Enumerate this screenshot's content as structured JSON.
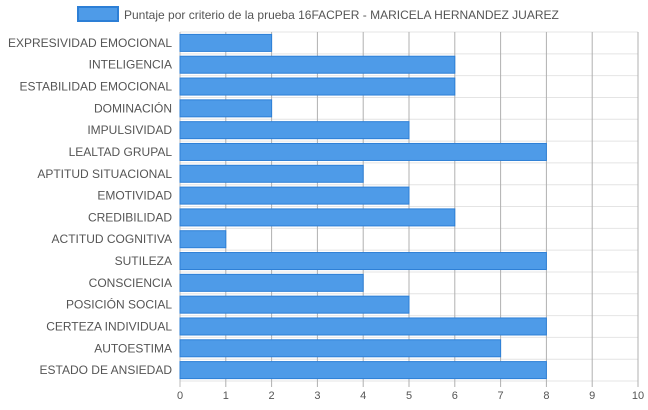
{
  "chart_data": {
    "type": "bar",
    "orientation": "horizontal",
    "categories": [
      "EXPRESIVIDAD EMOCIONAL",
      "INTELIGENCIA",
      "ESTABILIDAD EMOCIONAL",
      "DOMINACIÓN",
      "IMPULSIVIDAD",
      "LEALTAD GRUPAL",
      "APTITUD SITUACIONAL",
      "EMOTIVIDAD",
      "CREDIBILIDAD",
      "ACTITUD COGNITIVA",
      "SUTILEZA",
      "CONSCIENCIA",
      "POSICIÓN SOCIAL",
      "CERTEZA INDIVIDUAL",
      "AUTOESTIMA",
      "ESTADO DE ANSIEDAD"
    ],
    "series": [
      {
        "name": "Puntaje por criterio de la prueba 16FACPER - MARICELA HERNANDEZ JUAREZ",
        "values": [
          2,
          6,
          6,
          2,
          5,
          8,
          4,
          5,
          6,
          1,
          8,
          4,
          5,
          8,
          7,
          8
        ],
        "color": "#4e9be8",
        "border_color": "#2d7fd6"
      }
    ],
    "xlim": [
      0,
      10
    ],
    "x_ticks": [
      "0",
      "1",
      "2",
      "3",
      "4",
      "5",
      "6",
      "7",
      "8",
      "9",
      "10"
    ],
    "grid": true,
    "legend_position": "top"
  }
}
